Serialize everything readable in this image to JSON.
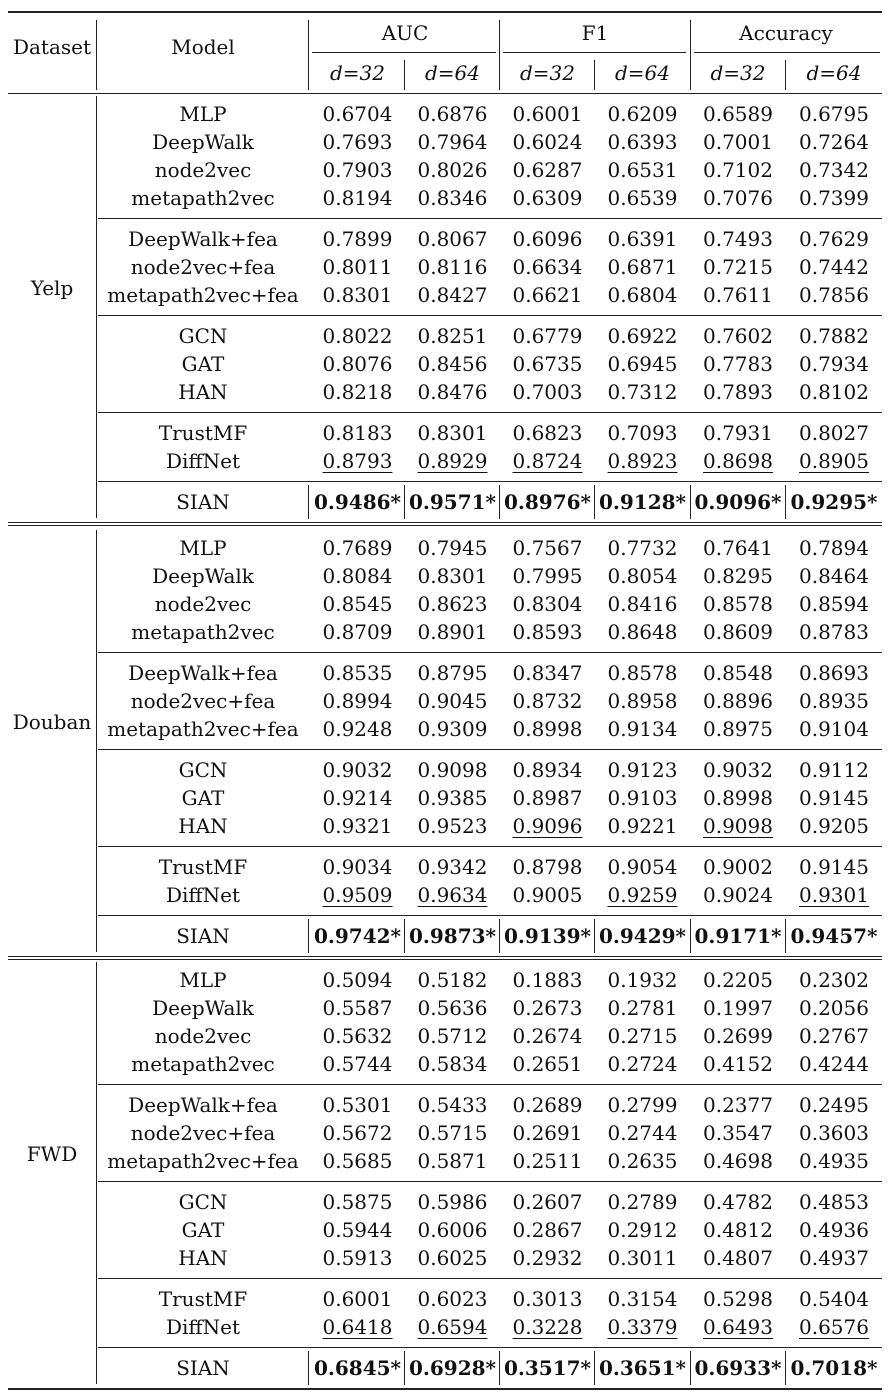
{
  "header": {
    "dataset": "Dataset",
    "model": "Model",
    "metrics": [
      "AUC",
      "F1",
      "Accuracy"
    ],
    "dims": [
      "d=32",
      "d=64",
      "d=32",
      "d=64",
      "d=32",
      "d=64"
    ]
  },
  "datasets": [
    {
      "name": "Yelp",
      "groups": [
        [
          {
            "model": "MLP",
            "values": [
              "0.6704",
              "0.6876",
              "0.6001",
              "0.6209",
              "0.6589",
              "0.6795"
            ]
          },
          {
            "model": "DeepWalk",
            "values": [
              "0.7693",
              "0.7964",
              "0.6024",
              "0.6393",
              "0.7001",
              "0.7264"
            ]
          },
          {
            "model": "node2vec",
            "values": [
              "0.7903",
              "0.8026",
              "0.6287",
              "0.6531",
              "0.7102",
              "0.7342"
            ]
          },
          {
            "model": "metapath2vec",
            "values": [
              "0.8194",
              "0.8346",
              "0.6309",
              "0.6539",
              "0.7076",
              "0.7399"
            ]
          }
        ],
        [
          {
            "model": "DeepWalk+fea",
            "values": [
              "0.7899",
              "0.8067",
              "0.6096",
              "0.6391",
              "0.7493",
              "0.7629"
            ]
          },
          {
            "model": "node2vec+fea",
            "values": [
              "0.8011",
              "0.8116",
              "0.6634",
              "0.6871",
              "0.7215",
              "0.7442"
            ]
          },
          {
            "model": "metapath2vec+fea",
            "values": [
              "0.8301",
              "0.8427",
              "0.6621",
              "0.6804",
              "0.7611",
              "0.7856"
            ]
          }
        ],
        [
          {
            "model": "GCN",
            "values": [
              "0.8022",
              "0.8251",
              "0.6779",
              "0.6922",
              "0.7602",
              "0.7882"
            ]
          },
          {
            "model": "GAT",
            "values": [
              "0.8076",
              "0.8456",
              "0.6735",
              "0.6945",
              "0.7783",
              "0.7934"
            ]
          },
          {
            "model": "HAN",
            "values": [
              "0.8218",
              "0.8476",
              "0.7003",
              "0.7312",
              "0.7893",
              "0.8102"
            ]
          }
        ],
        [
          {
            "model": "TrustMF",
            "values": [
              "0.8183",
              "0.8301",
              "0.6823",
              "0.7093",
              "0.7931",
              "0.8027"
            ]
          },
          {
            "model": "DiffNet",
            "values": [
              "0.8793",
              "0.8929",
              "0.8724",
              "0.8923",
              "0.8698",
              "0.8905"
            ],
            "underline": [
              0,
              1,
              2,
              3,
              4,
              5
            ]
          }
        ],
        [
          {
            "model": "SIAN",
            "values": [
              "0.9486*",
              "0.9571*",
              "0.8976*",
              "0.9128*",
              "0.9096*",
              "0.9295*"
            ],
            "bold": true
          }
        ]
      ]
    },
    {
      "name": "Douban",
      "groups": [
        [
          {
            "model": "MLP",
            "values": [
              "0.7689",
              "0.7945",
              "0.7567",
              "0.7732",
              "0.7641",
              "0.7894"
            ]
          },
          {
            "model": "DeepWalk",
            "values": [
              "0.8084",
              "0.8301",
              "0.7995",
              "0.8054",
              "0.8295",
              "0.8464"
            ]
          },
          {
            "model": "node2vec",
            "values": [
              "0.8545",
              "0.8623",
              "0.8304",
              "0.8416",
              "0.8578",
              "0.8594"
            ]
          },
          {
            "model": "metapath2vec",
            "values": [
              "0.8709",
              "0.8901",
              "0.8593",
              "0.8648",
              "0.8609",
              "0.8783"
            ]
          }
        ],
        [
          {
            "model": "DeepWalk+fea",
            "values": [
              "0.8535",
              "0.8795",
              "0.8347",
              "0.8578",
              "0.8548",
              "0.8693"
            ]
          },
          {
            "model": "node2vec+fea",
            "values": [
              "0.8994",
              "0.9045",
              "0.8732",
              "0.8958",
              "0.8896",
              "0.8935"
            ]
          },
          {
            "model": "metapath2vec+fea",
            "values": [
              "0.9248",
              "0.9309",
              "0.8998",
              "0.9134",
              "0.8975",
              "0.9104"
            ]
          }
        ],
        [
          {
            "model": "GCN",
            "values": [
              "0.9032",
              "0.9098",
              "0.8934",
              "0.9123",
              "0.9032",
              "0.9112"
            ]
          },
          {
            "model": "GAT",
            "values": [
              "0.9214",
              "0.9385",
              "0.8987",
              "0.9103",
              "0.8998",
              "0.9145"
            ]
          },
          {
            "model": "HAN",
            "values": [
              "0.9321",
              "0.9523",
              "0.9096",
              "0.9221",
              "0.9098",
              "0.9205"
            ],
            "underline": [
              2,
              4
            ]
          }
        ],
        [
          {
            "model": "TrustMF",
            "values": [
              "0.9034",
              "0.9342",
              "0.8798",
              "0.9054",
              "0.9002",
              "0.9145"
            ]
          },
          {
            "model": "DiffNet",
            "values": [
              "0.9509",
              "0.9634",
              "0.9005",
              "0.9259",
              "0.9024",
              "0.9301"
            ],
            "underline": [
              0,
              1,
              3,
              5
            ]
          }
        ],
        [
          {
            "model": "SIAN",
            "values": [
              "0.9742*",
              "0.9873*",
              "0.9139*",
              "0.9429*",
              "0.9171*",
              "0.9457*"
            ],
            "bold": true
          }
        ]
      ]
    },
    {
      "name": "FWD",
      "groups": [
        [
          {
            "model": "MLP",
            "values": [
              "0.5094",
              "0.5182",
              "0.1883",
              "0.1932",
              "0.2205",
              "0.2302"
            ]
          },
          {
            "model": "DeepWalk",
            "values": [
              "0.5587",
              "0.5636",
              "0.2673",
              "0.2781",
              "0.1997",
              "0.2056"
            ]
          },
          {
            "model": "node2vec",
            "values": [
              "0.5632",
              "0.5712",
              "0.2674",
              "0.2715",
              "0.2699",
              "0.2767"
            ]
          },
          {
            "model": "metapath2vec",
            "values": [
              "0.5744",
              "0.5834",
              "0.2651",
              "0.2724",
              "0.4152",
              "0.4244"
            ]
          }
        ],
        [
          {
            "model": "DeepWalk+fea",
            "values": [
              "0.5301",
              "0.5433",
              "0.2689",
              "0.2799",
              "0.2377",
              "0.2495"
            ]
          },
          {
            "model": "node2vec+fea",
            "values": [
              "0.5672",
              "0.5715",
              "0.2691",
              "0.2744",
              "0.3547",
              "0.3603"
            ]
          },
          {
            "model": "metapath2vec+fea",
            "values": [
              "0.5685",
              "0.5871",
              "0.2511",
              "0.2635",
              "0.4698",
              "0.4935"
            ]
          }
        ],
        [
          {
            "model": "GCN",
            "values": [
              "0.5875",
              "0.5986",
              "0.2607",
              "0.2789",
              "0.4782",
              "0.4853"
            ]
          },
          {
            "model": "GAT",
            "values": [
              "0.5944",
              "0.6006",
              "0.2867",
              "0.2912",
              "0.4812",
              "0.4936"
            ]
          },
          {
            "model": "HAN",
            "values": [
              "0.5913",
              "0.6025",
              "0.2932",
              "0.3011",
              "0.4807",
              "0.4937"
            ]
          }
        ],
        [
          {
            "model": "TrustMF",
            "values": [
              "0.6001",
              "0.6023",
              "0.3013",
              "0.3154",
              "0.5298",
              "0.5404"
            ]
          },
          {
            "model": "DiffNet",
            "values": [
              "0.6418",
              "0.6594",
              "0.3228",
              "0.3379",
              "0.6493",
              "0.6576"
            ],
            "underline": [
              0,
              1,
              2,
              3,
              4,
              5
            ]
          }
        ],
        [
          {
            "model": "SIAN",
            "values": [
              "0.6845*",
              "0.6928*",
              "0.3517*",
              "0.3651*",
              "0.6933*",
              "0.7018*"
            ],
            "bold": true
          }
        ]
      ]
    }
  ]
}
